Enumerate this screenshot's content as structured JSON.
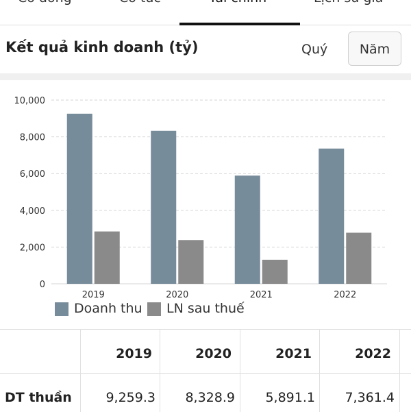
{
  "tabs": [
    {
      "label": "Cổ đông"
    },
    {
      "label": "Cổ tức"
    },
    {
      "label": "Tài chính",
      "active": true
    },
    {
      "label": "Lịch sử giá"
    }
  ],
  "header": {
    "title": "Kết quả kinh doanh (tỷ)",
    "period_quarter": "Quý",
    "period_year": "Năm",
    "selected_period": "Năm"
  },
  "colors": {
    "revenue": "#778c9b",
    "profit": "#8a8a8a",
    "grid": "#d6d6d6",
    "background": "#ffffff"
  },
  "chart_data": {
    "type": "bar",
    "categories": [
      "2019",
      "2020",
      "2021",
      "2022"
    ],
    "series": [
      {
        "name": "Doanh thu",
        "values": [
          9259.3,
          8328.9,
          5891.1,
          7361.4
        ]
      },
      {
        "name": "LN sau thuế",
        "values": [
          2850,
          2380,
          1310,
          2780
        ]
      }
    ],
    "ylim": [
      0,
      10000
    ],
    "yticks": [
      "0",
      "2,000",
      "4,000",
      "6,000",
      "8,000",
      "10,000"
    ],
    "grid": true,
    "legend": "bottom-left"
  },
  "table": {
    "columns": [
      "2019",
      "2020",
      "2021",
      "2022"
    ],
    "rows": [
      {
        "label": "DT thuần",
        "values": [
          "9,259.3",
          "8,328.9",
          "5,891.1",
          "7,361.4"
        ]
      }
    ]
  }
}
